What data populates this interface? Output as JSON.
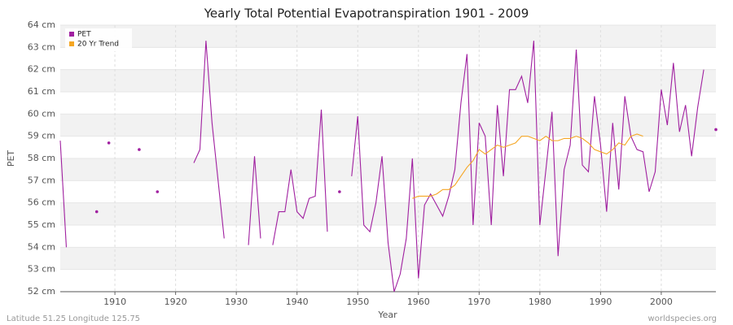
{
  "chart_data": {
    "type": "line",
    "title": "Yearly Total Potential Evapotranspiration 1901 - 2009",
    "x_label": "Year",
    "y_label": "PET",
    "footer_left": "Latitude 51.25 Longitude 125.75",
    "footer_right": "worldspecies.org",
    "x": [
      1901,
      1902,
      1903,
      1904,
      1905,
      1906,
      1907,
      1908,
      1909,
      1910,
      1911,
      1912,
      1913,
      1914,
      1915,
      1916,
      1917,
      1918,
      1919,
      1920,
      1921,
      1922,
      1923,
      1924,
      1925,
      1926,
      1927,
      1928,
      1929,
      1930,
      1931,
      1932,
      1933,
      1934,
      1935,
      1936,
      1937,
      1938,
      1939,
      1940,
      1941,
      1942,
      1943,
      1944,
      1945,
      1946,
      1947,
      1948,
      1949,
      1950,
      1951,
      1952,
      1953,
      1954,
      1955,
      1956,
      1957,
      1958,
      1959,
      1960,
      1961,
      1962,
      1963,
      1964,
      1965,
      1966,
      1967,
      1968,
      1969,
      1970,
      1971,
      1972,
      1973,
      1974,
      1975,
      1976,
      1977,
      1978,
      1979,
      1980,
      1981,
      1982,
      1983,
      1984,
      1985,
      1986,
      1987,
      1988,
      1989,
      1990,
      1991,
      1992,
      1993,
      1994,
      1995,
      1996,
      1997,
      1998,
      1999,
      2000,
      2001,
      2002,
      2003,
      2004,
      2005,
      2006,
      2007,
      2008,
      2009
    ],
    "series": [
      {
        "name": "PET",
        "color": "#a020a0",
        "values": [
          58.8,
          54.0,
          null,
          null,
          null,
          null,
          55.6,
          null,
          58.7,
          null,
          null,
          null,
          null,
          58.4,
          null,
          null,
          56.5,
          null,
          null,
          null,
          null,
          null,
          57.8,
          58.4,
          63.3,
          59.6,
          57.0,
          54.4,
          null,
          null,
          null,
          54.1,
          58.1,
          54.4,
          null,
          54.1,
          55.6,
          55.6,
          57.5,
          55.6,
          55.3,
          56.2,
          56.3,
          60.2,
          54.7,
          null,
          56.5,
          null,
          57.2,
          59.9,
          55.0,
          54.7,
          56.0,
          58.1,
          54.2,
          52.0,
          52.8,
          54.4,
          58.0,
          52.6,
          55.9,
          56.4,
          55.9,
          55.4,
          56.3,
          57.5,
          60.5,
          62.7,
          55.0,
          59.6,
          59.0,
          55.0,
          60.4,
          57.2,
          61.1,
          61.1,
          61.7,
          60.5,
          63.3,
          55.0,
          57.5,
          60.1,
          53.6,
          57.5,
          58.6,
          62.9,
          57.7,
          57.4,
          60.8,
          58.6,
          55.6,
          59.6,
          56.6,
          60.8,
          59.0,
          58.4,
          58.3,
          56.5,
          57.4,
          61.1,
          59.5,
          62.3,
          59.2,
          60.4,
          58.1,
          60.3,
          62.0,
          null,
          59.3
        ]
      },
      {
        "name": "20 Yr Trend",
        "color": "#f5a623",
        "values": [
          null,
          null,
          null,
          null,
          null,
          null,
          null,
          null,
          null,
          null,
          null,
          null,
          null,
          null,
          null,
          null,
          null,
          null,
          null,
          null,
          null,
          null,
          null,
          null,
          null,
          null,
          null,
          null,
          null,
          null,
          null,
          null,
          null,
          null,
          null,
          null,
          null,
          null,
          null,
          null,
          null,
          null,
          null,
          null,
          null,
          null,
          null,
          null,
          null,
          null,
          null,
          null,
          null,
          null,
          null,
          null,
          null,
          null,
          56.2,
          56.3,
          56.3,
          56.3,
          56.4,
          56.6,
          56.6,
          56.8,
          57.2,
          57.6,
          57.9,
          58.4,
          58.2,
          58.4,
          58.6,
          58.5,
          58.6,
          58.7,
          59.0,
          59.0,
          58.9,
          58.8,
          59.0,
          58.8,
          58.8,
          58.9,
          58.9,
          59.0,
          58.9,
          58.7,
          58.4,
          58.3,
          58.2,
          58.4,
          58.7,
          58.6,
          59.0,
          59.1,
          59.0,
          null,
          null,
          null,
          null,
          null,
          null,
          null,
          null,
          null,
          null,
          null,
          null
        ]
      }
    ],
    "xlim": [
      1901,
      2009
    ],
    "xticks": [
      1910,
      1920,
      1930,
      1940,
      1950,
      1960,
      1970,
      1980,
      1990,
      2000
    ],
    "ylim": [
      52,
      64
    ],
    "yticks": [
      {
        "value": 52,
        "label": "52 cm"
      },
      {
        "value": 53,
        "label": "53 cm"
      },
      {
        "value": 54,
        "label": "54 cm"
      },
      {
        "value": 55,
        "label": "55 cm"
      },
      {
        "value": 56,
        "label": "56 cm"
      },
      {
        "value": 57,
        "label": "57 cm"
      },
      {
        "value": 58,
        "label": "58 cm"
      },
      {
        "value": 59,
        "label": "59 cm"
      },
      {
        "value": 60,
        "label": "60 cm"
      },
      {
        "value": 61,
        "label": "61 cm"
      },
      {
        "value": 62,
        "label": "62 cm"
      },
      {
        "value": 63,
        "label": "63 cm"
      },
      {
        "value": 64,
        "label": "64 cm"
      }
    ],
    "grid": true,
    "legend": "top-left"
  }
}
